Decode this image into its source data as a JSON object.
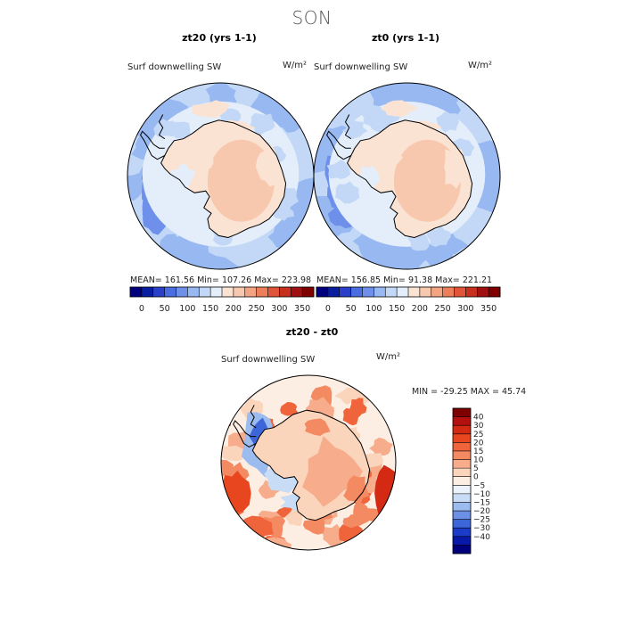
{
  "page_title": "SON",
  "chart_data": [
    {
      "type": "heatmap",
      "title": "zt20 (yrs 1-1)",
      "variable": "Surf downwelling SW",
      "units": "W/m²",
      "stats": {
        "mean_label": "MEAN=",
        "mean": "161.56",
        "min_label": "Min=",
        "min": "107.26",
        "max_label": "Max=",
        "max": "223.98"
      },
      "colorbar": {
        "levels": [
          0,
          50,
          100,
          150,
          200,
          250,
          300,
          350
        ],
        "colors": [
          "#00007f",
          "#0a1ea0",
          "#2a40c8",
          "#4a6ee0",
          "#6e90ea",
          "#98b8f2",
          "#c2d8f6",
          "#e4eefa",
          "#fbe3d3",
          "#f7c8ae",
          "#f3a482",
          "#ec7f5a",
          "#e0553a",
          "#c8301e",
          "#a01010",
          "#7f0000"
        ]
      }
    },
    {
      "type": "heatmap",
      "title": "zt0 (yrs 1-1)",
      "variable": "Surf downwelling SW",
      "units": "W/m²",
      "stats": {
        "mean_label": "MEAN=",
        "mean": "156.85",
        "min_label": "Min=",
        "min": "91.38",
        "max_label": "Max=",
        "max": "221.21"
      },
      "colorbar": {
        "levels": [
          0,
          50,
          100,
          150,
          200,
          250,
          300,
          350
        ],
        "colors": [
          "#00007f",
          "#0a1ea0",
          "#2a40c8",
          "#4a6ee0",
          "#6e90ea",
          "#98b8f2",
          "#c2d8f6",
          "#e4eefa",
          "#fbe3d3",
          "#f7c8ae",
          "#f3a482",
          "#ec7f5a",
          "#e0553a",
          "#c8301e",
          "#a01010",
          "#7f0000"
        ]
      }
    },
    {
      "type": "heatmap",
      "title": "zt20 - zt0",
      "variable": "Surf downwelling SW",
      "units": "W/m²",
      "stats": {
        "min_label": "MIN =",
        "min": "-29.25",
        "max_label": "MAX =",
        "max": "45.74"
      },
      "colorbar": {
        "levels": [
          "40",
          "30",
          "25",
          "20",
          "15",
          "10",
          "5",
          "0",
          "−5",
          "−10",
          "−15",
          "−20",
          "−25",
          "−30",
          "−40"
        ],
        "colors": [
          "#7f0000",
          "#b41010",
          "#d42a14",
          "#e8461e",
          "#f0643c",
          "#f48a62",
          "#f7ad8c",
          "#fbd4bc",
          "#fdeee4",
          "#ecf2fb",
          "#c8dcf6",
          "#9cbcef",
          "#6c90e6",
          "#3c66da",
          "#1a3cc8",
          "#0818a8",
          "#00007f"
        ]
      }
    }
  ]
}
